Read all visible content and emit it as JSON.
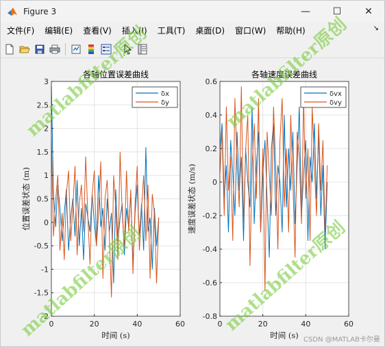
{
  "window": {
    "title": "Figure 3",
    "buttons": {
      "minimize": "—",
      "maximize": "☐",
      "close": "✕"
    }
  },
  "menu": {
    "items": [
      "文件(F)",
      "编辑(E)",
      "查看(V)",
      "插入(I)",
      "工具(T)",
      "桌面(D)",
      "窗口(W)",
      "帮助(H)"
    ],
    "overflow": "↘"
  },
  "toolbar": {
    "icons": [
      "new-figure-icon",
      "open-file-icon",
      "save-icon",
      "print-icon",
      "link-plot-icon",
      "insert-colorbar-icon",
      "insert-legend-icon",
      "pointer-icon",
      "property-inspector-icon"
    ]
  },
  "colors": {
    "series1": "#0072BD",
    "series2": "#D95319",
    "watermark": "#7CCD42"
  },
  "watermark": {
    "text": "matlabfilter原创"
  },
  "credit": "CSDN @MATLAB卡尔曼",
  "chart_data": [
    {
      "type": "line",
      "title": "各轴位置误差曲线",
      "xlabel": "时间 (s)",
      "ylabel": "位置误差状态 (m)",
      "xlim": [
        0,
        60
      ],
      "ylim": [
        -2,
        3
      ],
      "xticks": [
        0,
        20,
        40,
        60
      ],
      "yticks": [
        -2,
        -1.5,
        -1,
        -0.5,
        0,
        0.5,
        1,
        1.5,
        2,
        2.5,
        3
      ],
      "ytick_labels": [
        "-2",
        "-1.5",
        "-1",
        "-0.5",
        "0",
        "0.5",
        "1",
        "1.5",
        "2",
        "2.5",
        "3"
      ],
      "grid": true,
      "legend": "top-right",
      "series": [
        {
          "name": "δx",
          "x_range": [
            0,
            50
          ],
          "values": [
            2.9,
            0.6,
            -0.1,
            0.8,
            0.3,
            -0.4,
            0.2,
            0.7,
            -0.6,
            0.1,
            0.5,
            -0.3,
            0.9,
            -0.5,
            0.3,
            -0.8,
            0.4,
            0.1,
            -0.2,
            0.6,
            0.0,
            -0.5,
            1.0,
            -0.1,
            0.3,
            -0.6,
            0.5,
            -0.2,
            0.2,
            -1.3,
            0.7,
            -0.4,
            0.1,
            0.4,
            -0.7,
            0.3,
            -0.1,
            0.6,
            -0.9,
            0.2,
            0.8,
            -0.3,
            0.4,
            -0.6,
            1.6,
            -0.2,
            0.1,
            -1.0,
            0.3,
            -0.5,
            0.1
          ]
        },
        {
          "name": "δy",
          "x_range": [
            0,
            50
          ],
          "values": [
            1.8,
            -0.3,
            0.5,
            1.0,
            -0.6,
            0.2,
            -0.8,
            0.6,
            1.1,
            -0.4,
            0.3,
            1.2,
            -0.7,
            0.4,
            0.8,
            -0.2,
            1.4,
            0.1,
            -0.9,
            0.6,
            1.1,
            -0.5,
            0.2,
            1.3,
            -1.2,
            0.5,
            0.9,
            -0.3,
            -1.6,
            1.0,
            0.3,
            -0.8,
            1.5,
            0.2,
            -0.5,
            1.1,
            -0.2,
            0.7,
            -1.1,
            0.4,
            1.2,
            -0.6,
            0.3,
            1.0,
            -0.4,
            0.8,
            -1.2,
            0.6,
            0.2,
            -1.3,
            0.1
          ]
        }
      ]
    },
    {
      "type": "line",
      "title": "各轴速度误差曲线",
      "xlabel": "时间 (s)",
      "ylabel": "速度误差状态 (m/s)",
      "xlim": [
        0,
        60
      ],
      "ylim": [
        -0.8,
        0.6
      ],
      "xticks": [
        0,
        20,
        40,
        60
      ],
      "yticks": [
        -0.8,
        -0.6,
        -0.4,
        -0.2,
        0,
        0.2,
        0.4,
        0.6
      ],
      "ytick_labels": [
        "-0.8",
        "-0.6",
        "-0.4",
        "-0.2",
        "0",
        "0.2",
        "0.4",
        "0.6"
      ],
      "grid": true,
      "legend": "top-right",
      "series": [
        {
          "name": "δvx",
          "x_range": [
            0,
            50
          ],
          "values": [
            0.2,
            0.35,
            -0.1,
            0.1,
            -0.3,
            0.25,
            0.05,
            -0.2,
            0.3,
            -0.05,
            0.15,
            -0.35,
            0.2,
            0.0,
            -0.15,
            0.45,
            -0.25,
            0.1,
            0.3,
            -0.3,
            0.05,
            0.25,
            -0.1,
            -0.45,
            0.2,
            0.35,
            -0.2,
            0.1,
            0.0,
            -0.3,
            0.4,
            -0.15,
            0.2,
            -0.05,
            0.3,
            -0.25,
            0.1,
            0.45,
            -0.2,
            0.05,
            0.25,
            -0.35,
            0.15,
            0.0,
            0.35,
            -0.1,
            0.3,
            -0.2,
            0.1,
            -0.4,
            0.0
          ]
        },
        {
          "name": "δvy",
          "x_range": [
            0,
            50
          ],
          "values": [
            0.05,
            0.3,
            -0.2,
            0.45,
            -0.05,
            0.15,
            -0.35,
            0.5,
            0.1,
            -0.15,
            0.57,
            -0.25,
            0.2,
            0.4,
            -0.5,
            0.1,
            0.35,
            -0.1,
            0.5,
            -0.3,
            0.2,
            -0.65,
            0.3,
            0.05,
            -0.2,
            0.45,
            0.1,
            -0.4,
            0.25,
            0.5,
            -0.15,
            0.2,
            -0.3,
            0.4,
            0.0,
            -0.45,
            0.3,
            0.15,
            -0.25,
            0.5,
            -0.1,
            0.2,
            -0.35,
            0.45,
            0.1,
            -0.2,
            0.35,
            -0.05,
            0.25,
            -0.3,
            0.1
          ]
        }
      ]
    }
  ]
}
